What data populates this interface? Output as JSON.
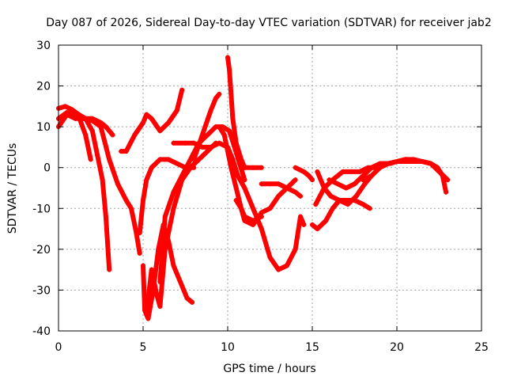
{
  "chart_data": {
    "type": "scatter",
    "title": "Day 087 of 2026, Sidereal Day-to-day VTEC variation (SDTVAR) for receiver jab2",
    "xlabel": "GPS time / hours",
    "ylabel": "SDTVAR / TECUs",
    "xlim": [
      0,
      25
    ],
    "ylim": [
      -40,
      30
    ],
    "xticks": [
      0,
      5,
      10,
      15,
      20,
      25
    ],
    "yticks": [
      -40,
      -30,
      -20,
      -10,
      0,
      10,
      20,
      30
    ],
    "grid": true,
    "marker": "plus",
    "color": "#ff0000",
    "series": [
      {
        "name": "trace-1",
        "x": [
          0,
          0.4,
          0.8,
          1.2,
          1.6,
          2.0,
          2.3,
          2.6,
          2.8,
          3.0
        ],
        "y": [
          14.5,
          15,
          14.2,
          13,
          12,
          9,
          3,
          -3,
          -12,
          -25
        ]
      },
      {
        "name": "trace-2",
        "x": [
          0,
          0.5,
          1.0,
          1.5,
          2.0,
          2.5,
          3.0,
          3.5,
          4.0,
          4.3,
          4.6,
          4.8
        ],
        "y": [
          12,
          13.5,
          12.5,
          12,
          11.5,
          10,
          2,
          -4,
          -8,
          -10,
          -16,
          -21
        ]
      },
      {
        "name": "trace-3",
        "x": [
          0,
          0.5,
          1.0,
          1.5,
          2.0,
          2.5,
          2.8,
          3.0,
          3.2
        ],
        "y": [
          10,
          13,
          12,
          12,
          12,
          11,
          10,
          9,
          8
        ]
      },
      {
        "name": "trace-4",
        "x": [
          0,
          0.4,
          0.8,
          1.2,
          1.6,
          1.9
        ],
        "y": [
          12,
          13,
          13.5,
          12.5,
          8,
          2
        ]
      },
      {
        "name": "trace-5",
        "x": [
          3.7,
          4.0,
          4.5,
          5.0,
          5.2,
          5.5,
          6.0,
          6.5,
          7.0,
          7.3
        ],
        "y": [
          4,
          4,
          8,
          11,
          13,
          12,
          9,
          11,
          14,
          19
        ]
      },
      {
        "name": "trace-6",
        "x": [
          4.8,
          5.0,
          5.2,
          5.5,
          6.0,
          6.5,
          7.0,
          7.5,
          8.0
        ],
        "y": [
          -16,
          -8,
          -3,
          0,
          2,
          2,
          1,
          0,
          0
        ]
      },
      {
        "name": "trace-7",
        "x": [
          5.0,
          5.1,
          5.3,
          5.6,
          5.9,
          6.2,
          6.5,
          6.8,
          7.2,
          7.6,
          7.9
        ],
        "y": [
          -24,
          -35,
          -37,
          -30,
          -20,
          -14,
          -18,
          -24,
          -28,
          -32,
          -33
        ]
      },
      {
        "name": "trace-8",
        "x": [
          5.2,
          5.5,
          5.8,
          6.0,
          6.3,
          6.8,
          7.3,
          7.8,
          8.3,
          8.8,
          9.3
        ],
        "y": [
          -36,
          -25,
          -31,
          -34,
          -20,
          -10,
          -3,
          0,
          2,
          4,
          6
        ]
      },
      {
        "name": "trace-9",
        "x": [
          6.0,
          6.3,
          6.8,
          7.3,
          7.8,
          8.3,
          8.8,
          9.3,
          9.7,
          10.1,
          10.4,
          10.7,
          11.0
        ],
        "y": [
          -28,
          -12,
          -6,
          -2,
          2,
          6,
          8,
          10,
          10,
          9,
          5,
          1,
          -3
        ]
      },
      {
        "name": "trace-10",
        "x": [
          6.8,
          7.5,
          8.0,
          8.5,
          9.0,
          9.5,
          10.0,
          10.3,
          10.6,
          11.0,
          11.5,
          12.0,
          12.5,
          13.0,
          13.5,
          14.0,
          14.3,
          14.5
        ],
        "y": [
          6,
          6,
          6,
          5,
          5,
          6,
          5,
          2,
          -2,
          -5,
          -10,
          -15,
          -22,
          -25,
          -24,
          -20,
          -12,
          -14
        ]
      },
      {
        "name": "trace-11",
        "x": [
          8.0,
          8.5,
          9.0,
          9.3,
          9.5
        ],
        "y": [
          2,
          8,
          14,
          17,
          18
        ]
      },
      {
        "name": "trace-12",
        "x": [
          9.5,
          9.8,
          10.0,
          10.2,
          10.5,
          10.8,
          11.0,
          11.5,
          12.0
        ],
        "y": [
          10,
          8,
          4,
          0,
          -5,
          -10,
          -12,
          -13,
          -12
        ]
      },
      {
        "name": "trace-13",
        "x": [
          10.0,
          10.1,
          10.2,
          10.3,
          10.5,
          10.8,
          11.0,
          11.5,
          12.0
        ],
        "y": [
          27,
          24,
          18,
          12,
          6,
          2,
          0,
          0,
          0
        ]
      },
      {
        "name": "trace-14",
        "x": [
          10.5,
          10.8,
          11.0,
          11.5,
          12.0,
          12.5,
          13.0,
          13.5,
          14.0
        ],
        "y": [
          -8,
          -10,
          -13,
          -14,
          -11,
          -10,
          -7,
          -5,
          -3
        ]
      },
      {
        "name": "trace-15",
        "x": [
          12.0,
          12.5,
          13.0,
          13.5,
          14.0,
          14.3
        ],
        "y": [
          -4,
          -4,
          -4,
          -5,
          -6,
          -7
        ]
      },
      {
        "name": "trace-16",
        "x": [
          14.0,
          14.5,
          14.8,
          15.0
        ],
        "y": [
          0,
          -1,
          -2,
          -3
        ]
      },
      {
        "name": "trace-17",
        "x": [
          15.0,
          15.3,
          15.8,
          16.2,
          16.6,
          17.0,
          17.5,
          18.0,
          18.4
        ],
        "y": [
          -14,
          -15,
          -13,
          -10,
          -8,
          -8,
          -8,
          -9,
          -10
        ]
      },
      {
        "name": "trace-18",
        "x": [
          15.2,
          15.7,
          16.2,
          16.8,
          17.3,
          17.8,
          18.3,
          18.8,
          19.2,
          19.6,
          20.0,
          20.5,
          21.0,
          21.5,
          22.0,
          22.4,
          22.7,
          22.9
        ],
        "y": [
          -9,
          -5,
          -3,
          -1,
          -1,
          -1,
          0,
          0,
          1,
          1,
          1.5,
          2,
          1.5,
          1.5,
          1,
          0,
          -2,
          -6
        ]
      },
      {
        "name": "trace-19",
        "x": [
          15.3,
          15.7,
          16.1,
          16.6,
          17.1,
          17.6,
          18.1,
          18.5
        ],
        "y": [
          -1,
          -5,
          -7,
          -8,
          -9,
          -7,
          -4,
          -2
        ]
      },
      {
        "name": "trace-20",
        "x": [
          16.0,
          16.5,
          17.0,
          17.5,
          18.0,
          18.5,
          19.0,
          19.5,
          20.0,
          20.5,
          21.0,
          21.5,
          22.0,
          22.5,
          23.0
        ],
        "y": [
          -3,
          -4,
          -5,
          -4,
          -2,
          0,
          1,
          1,
          1.5,
          1.5,
          1.5,
          1.5,
          1,
          -1,
          -3
        ]
      },
      {
        "name": "trace-21",
        "x": [
          18.0,
          18.5,
          19.0,
          19.5,
          20.0,
          20.5,
          21.0,
          21.5,
          22.0
        ],
        "y": [
          -3,
          -2,
          0,
          1,
          1.5,
          2,
          2,
          1.5,
          1
        ]
      }
    ]
  }
}
